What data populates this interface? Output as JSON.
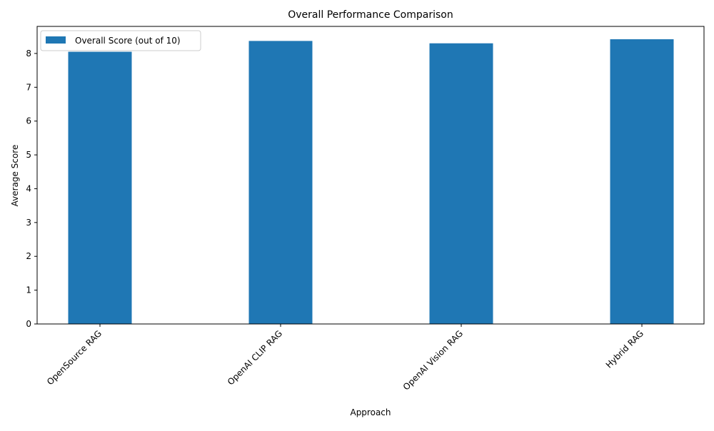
{
  "chart_data": {
    "type": "bar",
    "title": "Overall Performance Comparison",
    "xlabel": "Approach",
    "ylabel": "Average Score",
    "categories": [
      "OpenSource RAG",
      "OpenAI CLIP RAG",
      "OpenAI Vision RAG",
      "Hybrid RAG"
    ],
    "series": [
      {
        "name": "Overall Score (out of 10)",
        "values": [
          8.05,
          8.37,
          8.3,
          8.42
        ],
        "color": "#1f77b4"
      }
    ],
    "ylim": [
      0,
      8.8
    ],
    "yticks": [
      0,
      1,
      2,
      3,
      4,
      5,
      6,
      7,
      8
    ],
    "grid": false,
    "legend_position": "top-left"
  }
}
